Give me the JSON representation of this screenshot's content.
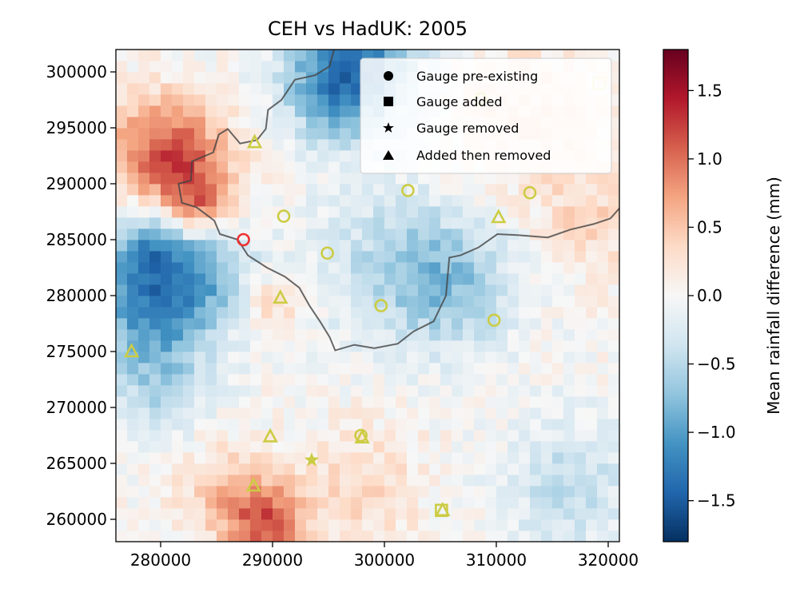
{
  "chart_data": {
    "type": "heatmap",
    "title": "CEH vs HadUK: 2005",
    "xlabel": "",
    "ylabel": "",
    "xlim": [
      276000,
      321000
    ],
    "ylim": [
      258000,
      302000
    ],
    "x_ticks": [
      280000,
      290000,
      300000,
      310000,
      320000
    ],
    "x_tick_labels": [
      "280000",
      "290000",
      "300000",
      "310000",
      "320000"
    ],
    "y_ticks": [
      260000,
      265000,
      270000,
      275000,
      280000,
      285000,
      290000,
      295000,
      300000
    ],
    "y_tick_labels": [
      "260000",
      "265000",
      "270000",
      "275000",
      "280000",
      "285000",
      "290000",
      "295000",
      "300000"
    ],
    "grid": false,
    "colorbar": {
      "label": "Mean rainfall difference (mm)",
      "colormap": "RdBu_r",
      "range": [
        -1.8,
        1.8
      ],
      "ticks": [
        -1.5,
        -1.0,
        -0.5,
        0.0,
        0.5,
        1.0,
        1.5
      ],
      "tick_labels": [
        "−1.5",
        "−1.0",
        "−0.5",
        "0.0",
        "0.5",
        "1.0",
        "1.5"
      ]
    },
    "legend": {
      "placement": "top-right",
      "entries": [
        {
          "marker": "circle",
          "label": "Gauge pre-existing"
        },
        {
          "marker": "square",
          "label": "Gauge added"
        },
        {
          "marker": "star",
          "label": "Gauge removed"
        },
        {
          "marker": "triangle",
          "label": "Added then removed"
        }
      ]
    },
    "gauges": {
      "pre_existing": [
        {
          "x": 287400,
          "y": 285000,
          "color": "#ee3333"
        },
        {
          "x": 291000,
          "y": 287100,
          "color": "#cccc44"
        },
        {
          "x": 294900,
          "y": 283800,
          "color": "#cccc44"
        },
        {
          "x": 302100,
          "y": 289400,
          "color": "#cccc44"
        },
        {
          "x": 313000,
          "y": 289200,
          "color": "#cccc44"
        },
        {
          "x": 299700,
          "y": 279100,
          "color": "#cccc44"
        },
        {
          "x": 309800,
          "y": 277800,
          "color": "#cccc44"
        },
        {
          "x": 297900,
          "y": 267500,
          "color": "#cccc44"
        },
        {
          "x": 308600,
          "y": 297600,
          "color": "#cccc44"
        }
      ],
      "added": [
        {
          "x": 319200,
          "y": 299000,
          "color": "#e6e6a0"
        },
        {
          "x": 305100,
          "y": 260800,
          "color": "#cccc44"
        }
      ],
      "removed": [
        {
          "x": 293500,
          "y": 265300,
          "color": "#cccc44"
        }
      ],
      "added_then_removed": [
        {
          "x": 277400,
          "y": 275000,
          "color": "#cccc44"
        },
        {
          "x": 288400,
          "y": 293700,
          "color": "#cccc44"
        },
        {
          "x": 290700,
          "y": 279800,
          "color": "#cccc44"
        },
        {
          "x": 310200,
          "y": 287000,
          "color": "#cccc44"
        },
        {
          "x": 289800,
          "y": 267400,
          "color": "#cccc44"
        },
        {
          "x": 298000,
          "y": 267300,
          "color": "#cccc44"
        },
        {
          "x": 288300,
          "y": 263000,
          "color": "#cccc44"
        },
        {
          "x": 305200,
          "y": 260800,
          "color": "#cccc44"
        }
      ]
    },
    "boundary_lines": [
      [
        [
          295500,
          302000
        ],
        [
          295100,
          300500
        ],
        [
          293800,
          299700
        ],
        [
          292000,
          299300
        ],
        [
          290800,
          297500
        ],
        [
          289600,
          296600
        ],
        [
          289400,
          294900
        ],
        [
          288600,
          293900
        ],
        [
          287100,
          293600
        ],
        [
          286000,
          294900
        ],
        [
          285200,
          294400
        ],
        [
          284700,
          292800
        ],
        [
          282800,
          292000
        ],
        [
          282700,
          290300
        ],
        [
          281600,
          290000
        ],
        [
          281900,
          288300
        ],
        [
          283200,
          287900
        ],
        [
          284800,
          286700
        ],
        [
          285300,
          285500
        ],
        [
          286900,
          285000
        ],
        [
          287800,
          283600
        ],
        [
          289500,
          282500
        ],
        [
          291100,
          281700
        ],
        [
          292400,
          280700
        ],
        [
          293300,
          279100
        ],
        [
          294300,
          277600
        ],
        [
          295100,
          276300
        ],
        [
          295600,
          275100
        ],
        [
          297300,
          275600
        ],
        [
          299100,
          275300
        ],
        [
          301200,
          275700
        ],
        [
          302600,
          276800
        ],
        [
          304400,
          277700
        ],
        [
          305500,
          280000
        ],
        [
          305800,
          283400
        ],
        [
          306800,
          283600
        ],
        [
          308400,
          284300
        ],
        [
          310100,
          285500
        ],
        [
          312000,
          285400
        ],
        [
          314600,
          285200
        ],
        [
          316600,
          285900
        ],
        [
          318700,
          286400
        ],
        [
          320200,
          286900
        ],
        [
          321000,
          287800
        ]
      ]
    ]
  }
}
